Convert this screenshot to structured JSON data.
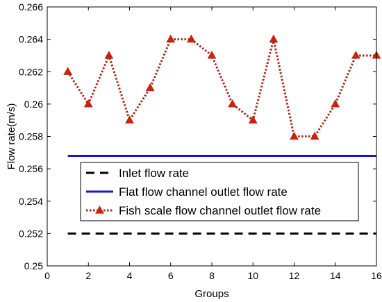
{
  "chart_data": {
    "type": "line",
    "xlabel": "Groups",
    "ylabel": "Flow rate(m/s)",
    "xlim": [
      0,
      16
    ],
    "ylim": [
      0.25,
      0.266
    ],
    "xticks": [
      0,
      2,
      4,
      6,
      8,
      10,
      12,
      14,
      16
    ],
    "yticks": [
      0.25,
      0.252,
      0.254,
      0.256,
      0.258,
      0.26,
      0.262,
      0.264,
      0.266
    ],
    "xtick_labels": [
      "0",
      "2",
      "4",
      "6",
      "8",
      "10",
      "12",
      "14",
      "16"
    ],
    "ytick_labels": [
      "0.25",
      "0.252",
      "0.254",
      "0.256",
      "0.258",
      "0.26",
      "0.262",
      "0.264",
      "0.266"
    ],
    "grid": false,
    "legend_position": "lower-center",
    "series": [
      {
        "name": "Inlet flow rate",
        "style": "dashed",
        "color": "#000000",
        "x": [
          1,
          16
        ],
        "y": [
          0.252,
          0.252
        ]
      },
      {
        "name": "Flat flow channel outlet flow rate",
        "style": "solid",
        "color": "#1515d6",
        "x": [
          1,
          16
        ],
        "y": [
          0.2568,
          0.2568
        ]
      },
      {
        "name": "Fish scale flow channel outlet flow rate",
        "style": "dotted-triangle",
        "color": "#a52a1a",
        "marker_color": "#d81e06",
        "x": [
          1,
          2,
          3,
          4,
          5,
          6,
          7,
          8,
          9,
          10,
          11,
          12,
          13,
          14,
          15,
          16
        ],
        "y": [
          0.262,
          0.26,
          0.263,
          0.259,
          0.261,
          0.264,
          0.264,
          0.263,
          0.26,
          0.259,
          0.264,
          0.258,
          0.258,
          0.26,
          0.263,
          0.263
        ]
      }
    ]
  }
}
